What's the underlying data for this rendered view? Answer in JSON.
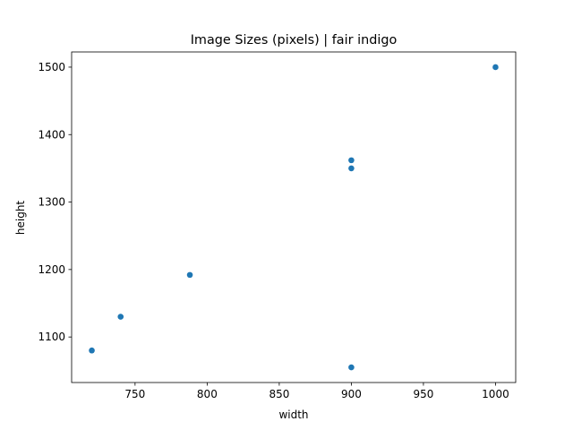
{
  "chart_data": {
    "type": "scatter",
    "title": "Image Sizes (pixels) | fair indigo",
    "xlabel": "width",
    "ylabel": "height",
    "xlim": [
      706,
      1014
    ],
    "ylim": [
      1032.5,
      1522.5
    ],
    "xticks": [
      750,
      800,
      850,
      900,
      950,
      1000
    ],
    "yticks": [
      1100,
      1200,
      1300,
      1400,
      1500
    ],
    "grid": false,
    "marker_color": "#1f77b4",
    "points": [
      {
        "x": 720,
        "y": 1080
      },
      {
        "x": 740,
        "y": 1130
      },
      {
        "x": 788,
        "y": 1192
      },
      {
        "x": 900,
        "y": 1055
      },
      {
        "x": 900,
        "y": 1350
      },
      {
        "x": 900,
        "y": 1362
      },
      {
        "x": 1000,
        "y": 1500
      }
    ]
  }
}
